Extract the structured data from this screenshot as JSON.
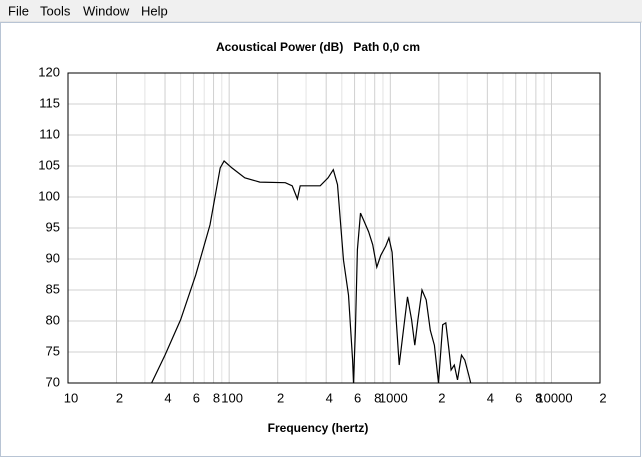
{
  "menu": [
    "File",
    "Tools",
    "Window",
    "Help"
  ],
  "chart_data": {
    "type": "line",
    "log_x": true,
    "grid": true,
    "title": "Acoustical Power (dB)   Path 0,0 cm",
    "x_label": "Frequency (hertz)",
    "xlim": [
      10,
      20000
    ],
    "ylim": [
      70,
      120
    ],
    "xticks": [
      10,
      {
        "value": 20,
        "label": "2"
      },
      {
        "value": 40,
        "label": "4"
      },
      {
        "value": 60,
        "label": "6"
      },
      {
        "value": 80,
        "label": "8"
      },
      100,
      {
        "value": 200,
        "label": "2"
      },
      {
        "value": 400,
        "label": "4"
      },
      {
        "value": 600,
        "label": "6"
      },
      {
        "value": 800,
        "label": "8"
      },
      1000,
      {
        "value": 2000,
        "label": "2"
      },
      {
        "value": 4000,
        "label": "4"
      },
      {
        "value": 6000,
        "label": "6"
      },
      {
        "value": 8000,
        "label": "8"
      },
      10000,
      {
        "value": 20000,
        "label": "2"
      }
    ],
    "xgrid": [
      30,
      50,
      70,
      90,
      300,
      500,
      700,
      900,
      3000,
      5000,
      7000,
      9000
    ],
    "yticks": [
      70,
      75,
      80,
      85,
      90,
      95,
      100,
      105,
      110,
      115,
      120
    ],
    "color": "#000000",
    "x": [
      33,
      40,
      50,
      62,
      76,
      88,
      93,
      104,
      125,
      155,
      223,
      246,
      265,
      276,
      318,
      367,
      411,
      443,
      470,
      512,
      550,
      583,
      591,
      607,
      625,
      653,
      682,
      733,
      777,
      824,
      873,
      938,
      980,
      1025,
      1087,
      1136,
      1205,
      1278,
      1355,
      1418,
      1483,
      1573,
      1669,
      1770,
      1877,
      1991,
      2112,
      2210,
      2313,
      2383,
      2493,
      2610,
      2766,
      2900,
      3063,
      3155
    ],
    "values": [
      70,
      74.5,
      80.2,
      87.4,
      95.5,
      104.7,
      105.8,
      104.7,
      103.1,
      102.4,
      102.3,
      101.8,
      99.7,
      101.8,
      101.8,
      101.8,
      103.1,
      104.4,
      102,
      89.8,
      84.2,
      73.7,
      70,
      78.5,
      91.5,
      97.4,
      96.3,
      94.4,
      92.3,
      88.7,
      90.6,
      92.1,
      93.4,
      91.1,
      80.2,
      72.9,
      78.5,
      83.9,
      80.2,
      76.1,
      80.2,
      85,
      83.4,
      78.5,
      76.1,
      70,
      79.4,
      79.7,
      75.3,
      72.1,
      72.9,
      70.5,
      74.5,
      73.7,
      71.3,
      70
    ]
  }
}
